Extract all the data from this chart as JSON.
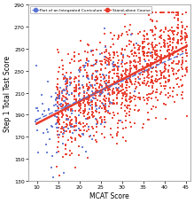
{
  "title": "",
  "xlabel": "MCAT Score",
  "ylabel": "Step 1 Total Test Score",
  "xlim": [
    8,
    46
  ],
  "ylim": [
    130,
    290
  ],
  "xticks": [
    10,
    15,
    20,
    25,
    30,
    35,
    40,
    45
  ],
  "yticks": [
    130,
    150,
    170,
    190,
    210,
    230,
    250,
    270,
    290
  ],
  "bg_color": "#ffffff",
  "red_color": "#e8392a",
  "blue_color": "#5b75d4",
  "reg_red_slope": 2.0,
  "reg_red_intercept": 162.0,
  "reg_blue_slope": 1.75,
  "reg_blue_intercept": 168.0,
  "n_red": 1200,
  "n_blue": 180,
  "seed_red": 7,
  "seed_blue": 13
}
